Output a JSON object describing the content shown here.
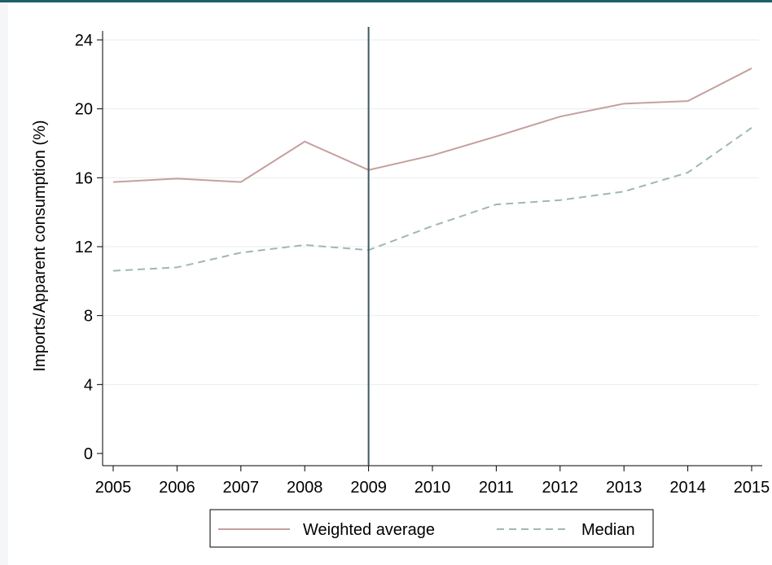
{
  "chart_data": {
    "type": "line",
    "x": [
      2005,
      2006,
      2007,
      2008,
      2009,
      2010,
      2011,
      2012,
      2013,
      2014,
      2015
    ],
    "ylabel": "Imports/Apparent consumption (%)",
    "xlabel": "",
    "ylim": [
      0,
      24
    ],
    "xlim": [
      2005,
      2015
    ],
    "yticks": [
      0,
      4,
      8,
      12,
      16,
      20,
      24
    ],
    "xticks": [
      2005,
      2006,
      2007,
      2008,
      2009,
      2010,
      2011,
      2012,
      2013,
      2014,
      2015
    ],
    "grid": "horizontal",
    "vline_x": 2009,
    "legend_position": "bottom",
    "series": [
      {
        "name": "Weighted average",
        "color": "#c4a09c",
        "style": "solid",
        "values": [
          15.75,
          15.95,
          15.75,
          18.1,
          16.45,
          17.3,
          18.4,
          19.55,
          20.3,
          20.45,
          22.35
        ]
      },
      {
        "name": "Median",
        "color": "#9fb8b2",
        "style": "dashed",
        "values": [
          10.6,
          10.8,
          11.65,
          12.1,
          11.8,
          13.2,
          14.45,
          14.7,
          15.2,
          16.3,
          18.9
        ]
      }
    ]
  },
  "colors": {
    "vline": "#3f5866",
    "grid": "#e6eef0",
    "top_bar": "#1f5f66"
  }
}
